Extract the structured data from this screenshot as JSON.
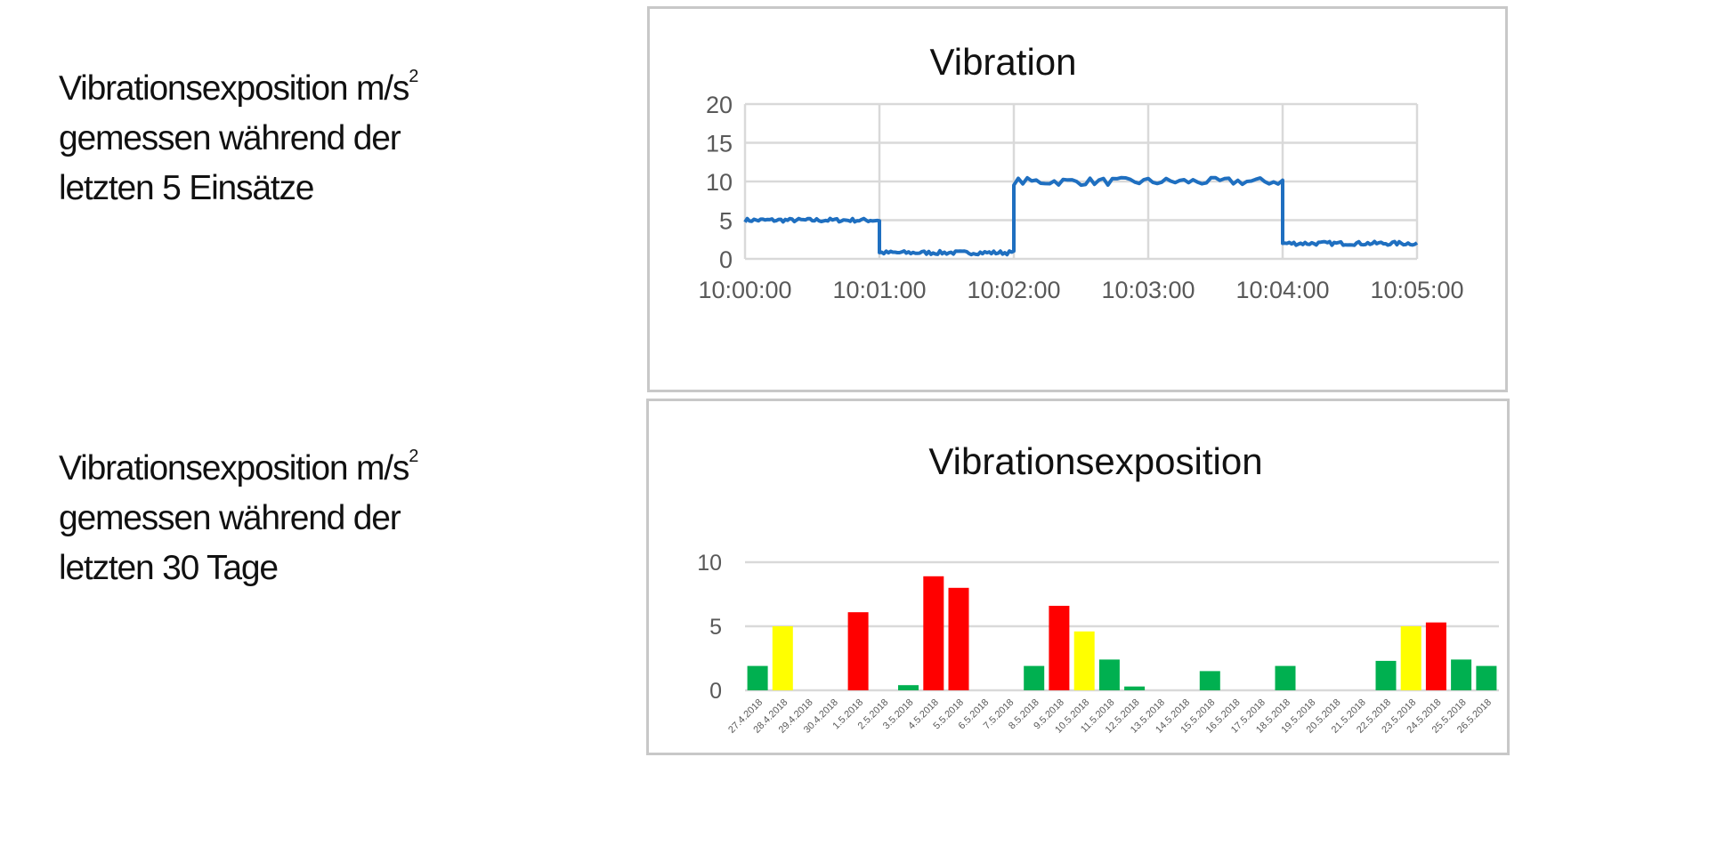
{
  "descriptions": [
    {
      "line1": "Vibrationsexposition m/s",
      "sup": "2",
      "line2": "gemessen während der",
      "line3": "letzten 5 Einsätze"
    },
    {
      "line1": "Vibrationsexposition m/s",
      "sup": "2",
      "line2": "gemessen während der",
      "line3": "letzten 30 Tage"
    }
  ],
  "chart_data": [
    {
      "type": "line",
      "title": "Vibration",
      "xlabel": "",
      "ylabel": "",
      "x_ticks": [
        "10:00:00",
        "10:01:00",
        "10:02:00",
        "10:03:00",
        "10:04:00",
        "10:05:00"
      ],
      "y_ticks": [
        "0",
        "5",
        "10",
        "15",
        "20"
      ],
      "ylim": [
        0,
        20
      ],
      "xlim_minutes": [
        0,
        5
      ],
      "grid": true,
      "color": "#1f6fc0",
      "segments": [
        {
          "x_start": "10:00:00",
          "x_end": "10:01:00",
          "value": 5
        },
        {
          "x_start": "10:01:00",
          "x_end": "10:02:00",
          "value": 0.8
        },
        {
          "x_start": "10:02:00",
          "x_end": "10:04:00",
          "value": 10
        },
        {
          "x_start": "10:04:00",
          "x_end": "10:05:00",
          "value": 2
        }
      ]
    },
    {
      "type": "bar",
      "title": "Vibrationsexposition",
      "xlabel": "",
      "ylabel": "",
      "y_ticks": [
        "0",
        "5",
        "10"
      ],
      "ylim": [
        0,
        10
      ],
      "grid": true,
      "colors": {
        "green": "#00b050",
        "yellow": "#ffff00",
        "red": "#ff0000"
      },
      "categories": [
        "27.4.2018",
        "28.4.2018",
        "29.4.2018",
        "30.4.2018",
        "1.5.2018",
        "2.5.2018",
        "3.5.2018",
        "4.5.2018",
        "5.5.2018",
        "6.5.2018",
        "7.5.2018",
        "8.5.2018",
        "9.5.2018",
        "10.5.2018",
        "11.5.2018",
        "12.5.2018",
        "13.5.2018",
        "14.5.2018",
        "15.5.2018",
        "16.5.2018",
        "17.5.2018",
        "18.5.2018",
        "19.5.2018",
        "20.5.2018",
        "21.5.2018",
        "22.5.2018",
        "23.5.2018",
        "24.5.2018",
        "25.5.2018",
        "26.5.2018"
      ],
      "values": [
        1.9,
        5.0,
        0,
        0,
        6.1,
        0,
        0.4,
        8.9,
        8.0,
        0,
        0,
        1.9,
        6.6,
        4.6,
        2.4,
        0.3,
        0,
        0,
        1.5,
        0,
        0,
        1.9,
        0,
        0,
        0,
        2.3,
        5.0,
        5.3,
        2.4,
        1.9
      ],
      "bar_colors": [
        "green",
        "yellow",
        "none",
        "none",
        "red",
        "none",
        "green",
        "red",
        "red",
        "none",
        "none",
        "green",
        "red",
        "yellow",
        "green",
        "green",
        "none",
        "none",
        "green",
        "none",
        "none",
        "green",
        "none",
        "none",
        "none",
        "green",
        "yellow",
        "red",
        "green",
        "green"
      ]
    }
  ]
}
